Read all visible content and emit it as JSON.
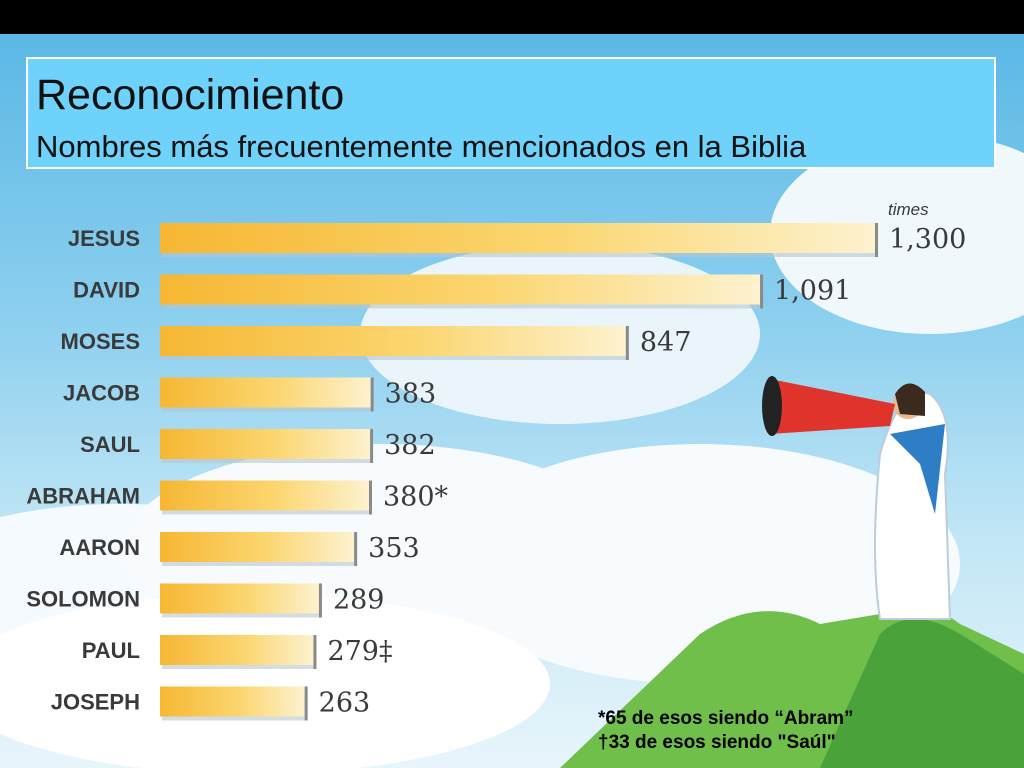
{
  "title": "Reconocimiento",
  "subtitle": "Nombres más frecuentemente mencionados en la Biblia",
  "chart_data": {
    "type": "bar",
    "orientation": "horizontal",
    "unit_label": "times",
    "categories": [
      "JESUS",
      "DAVID",
      "MOSES",
      "JACOB",
      "SAUL",
      "ABRAHAM",
      "AARON",
      "SOLOMON",
      "PAUL",
      "JOSEPH"
    ],
    "values": [
      1300,
      1091,
      847,
      383,
      382,
      380,
      353,
      289,
      279,
      263
    ],
    "value_labels": [
      "1,300",
      "1,091",
      "847",
      "383",
      "382",
      "380*",
      "353",
      "289",
      "279‡",
      "263"
    ],
    "grid": false,
    "bar_color": "#f7c443"
  },
  "footnotes": [
    "*65 de esos siendo “Abram”",
    "†33 de esos siendo \"Saúl\""
  ]
}
